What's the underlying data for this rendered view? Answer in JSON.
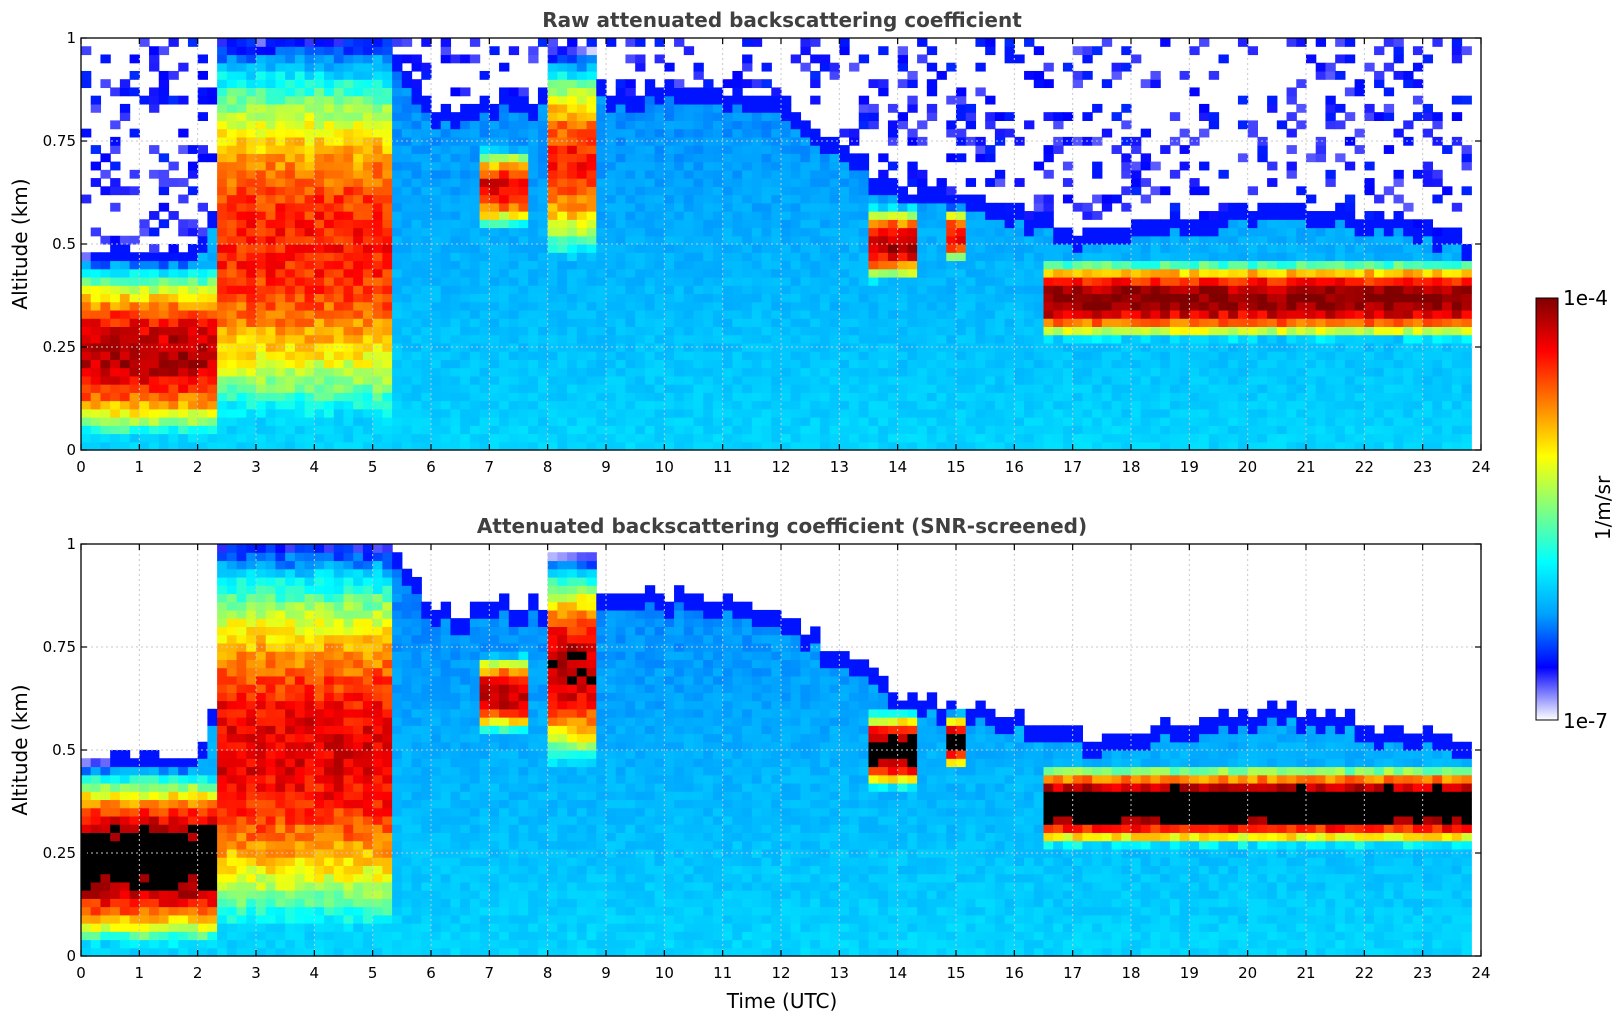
{
  "chart_data": [
    {
      "type": "heatmap",
      "title": "Raw attenuated backscattering coefficient",
      "xlabel": "",
      "ylabel": "Altitude (km)",
      "xlim": [
        0,
        24
      ],
      "ylim": [
        0,
        1
      ],
      "xticks": [
        "0",
        "1",
        "2",
        "3",
        "4",
        "5",
        "6",
        "7",
        "8",
        "9",
        "10",
        "11",
        "12",
        "13",
        "14",
        "15",
        "16",
        "17",
        "18",
        "19",
        "20",
        "21",
        "22",
        "23",
        "24"
      ],
      "yticks": [
        "0",
        "0.25",
        "0.5",
        "0.75",
        "1"
      ],
      "grid": true,
      "noise_above_boundary": true,
      "layers": [
        {
          "time": [
            0,
            2.4
          ],
          "bottom": 0.02,
          "top": 0.45,
          "peak": 0.95
        },
        {
          "time": [
            2.4,
            5.3
          ],
          "bottom": 0.0,
          "top": 1.0,
          "peak": 0.85
        },
        {
          "time": [
            6.8,
            7.6
          ],
          "bottom": 0.55,
          "top": 0.72,
          "peak": 0.9
        },
        {
          "time": [
            8.0,
            8.8
          ],
          "bottom": 0.45,
          "top": 0.95,
          "peak": 0.85
        },
        {
          "time": [
            13.5,
            14.4
          ],
          "bottom": 0.42,
          "top": 0.58,
          "peak": 0.95
        },
        {
          "time": [
            14.9,
            15.2
          ],
          "bottom": 0.47,
          "top": 0.57,
          "peak": 0.9
        },
        {
          "time": [
            16.5,
            23.8
          ],
          "bottom": 0.28,
          "top": 0.45,
          "peak": 1.0
        }
      ],
      "boundary_layer_top": {
        "time": [
          0,
          2,
          2.4,
          5.3,
          6,
          10,
          12,
          13,
          14,
          15,
          16,
          16.5,
          17.5,
          18.5,
          20,
          21,
          22,
          23,
          23.8
        ],
        "height": [
          0.44,
          0.45,
          0.6,
          0.95,
          0.8,
          0.85,
          0.8,
          0.7,
          0.6,
          0.58,
          0.55,
          0.52,
          0.48,
          0.52,
          0.55,
          0.56,
          0.53,
          0.5,
          0.48
        ]
      }
    },
    {
      "type": "heatmap",
      "title": "Attenuated backscattering coefficient (SNR-screened)",
      "xlabel": "Time (UTC)",
      "ylabel": "Altitude (km)",
      "xlim": [
        0,
        24
      ],
      "ylim": [
        0,
        1
      ],
      "xticks": [
        "0",
        "1",
        "2",
        "3",
        "4",
        "5",
        "6",
        "7",
        "8",
        "9",
        "10",
        "11",
        "12",
        "13",
        "14",
        "15",
        "16",
        "17",
        "18",
        "19",
        "20",
        "21",
        "22",
        "23",
        "24"
      ],
      "yticks": [
        "0",
        "0.25",
        "0.5",
        "0.75",
        "1"
      ],
      "grid": true,
      "noise_above_boundary": false,
      "saturation_color": "#000000",
      "layers": [
        {
          "time": [
            0,
            2.4
          ],
          "bottom": 0.02,
          "top": 0.45,
          "peak": 1.05
        },
        {
          "time": [
            2.4,
            5.3
          ],
          "bottom": 0.0,
          "top": 1.0,
          "peak": 0.9
        },
        {
          "time": [
            6.8,
            7.6
          ],
          "bottom": 0.55,
          "top": 0.72,
          "peak": 0.95
        },
        {
          "time": [
            8.0,
            8.8
          ],
          "bottom": 0.45,
          "top": 0.95,
          "peak": 0.95
        },
        {
          "time": [
            13.5,
            14.4
          ],
          "bottom": 0.42,
          "top": 0.58,
          "peak": 1.05
        },
        {
          "time": [
            14.9,
            15.2
          ],
          "bottom": 0.47,
          "top": 0.57,
          "peak": 1.0
        },
        {
          "time": [
            16.5,
            23.8
          ],
          "bottom": 0.28,
          "top": 0.45,
          "peak": 1.1
        }
      ],
      "boundary_layer_top": {
        "time": [
          0,
          2,
          2.4,
          5.3,
          6,
          10,
          12,
          13,
          14,
          15,
          16,
          16.5,
          17.5,
          18.5,
          20,
          21,
          22,
          23,
          23.8
        ],
        "height": [
          0.44,
          0.45,
          0.6,
          0.95,
          0.8,
          0.85,
          0.8,
          0.7,
          0.6,
          0.58,
          0.55,
          0.52,
          0.48,
          0.52,
          0.55,
          0.56,
          0.53,
          0.5,
          0.48
        ]
      }
    }
  ],
  "colorbar": {
    "min_label": "1e-7",
    "max_label": "1e-4",
    "unit_label": "1/m/sr",
    "colors": [
      "#ffffff",
      "#0000ff",
      "#00a0ff",
      "#00ffff",
      "#80ff80",
      "#ffff00",
      "#ff8000",
      "#ff0000",
      "#800000"
    ]
  }
}
